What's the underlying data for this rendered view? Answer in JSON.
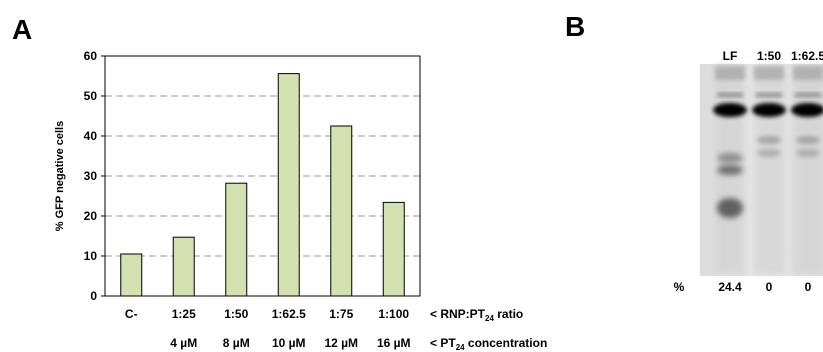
{
  "panel_a": {
    "label": "A",
    "chart_data": {
      "type": "bar",
      "categories": [
        "C-",
        "1:25",
        "1:50",
        "1:62.5",
        "1:75",
        "1:100"
      ],
      "concentrations": [
        "",
        "4 µM",
        "8 µM",
        "10 µM",
        "12 µM",
        "16 µM"
      ],
      "values": [
        10.5,
        14.7,
        28.2,
        55.6,
        42.5,
        23.4
      ],
      "ylabel": "% GFP negative cells",
      "yticks": [
        0,
        10,
        20,
        30,
        40,
        50,
        60
      ],
      "ylim": [
        0,
        60
      ],
      "grid": "horizontal dashed",
      "bar_color": "#d4e0b0",
      "bar_edge_color": "#000000",
      "row_label_ratio": {
        "prefix": "< RNP:PT",
        "sub": "24",
        "suffix": " ratio"
      },
      "row_label_conc": {
        "prefix": "< PT",
        "sub": "24",
        "suffix": " concentration"
      }
    }
  },
  "panel_b": {
    "label": "B",
    "lanes": [
      "LF",
      "1:50",
      "1:62.5"
    ],
    "row_label": "%",
    "percentages": [
      "24.4",
      "0",
      "0"
    ]
  }
}
